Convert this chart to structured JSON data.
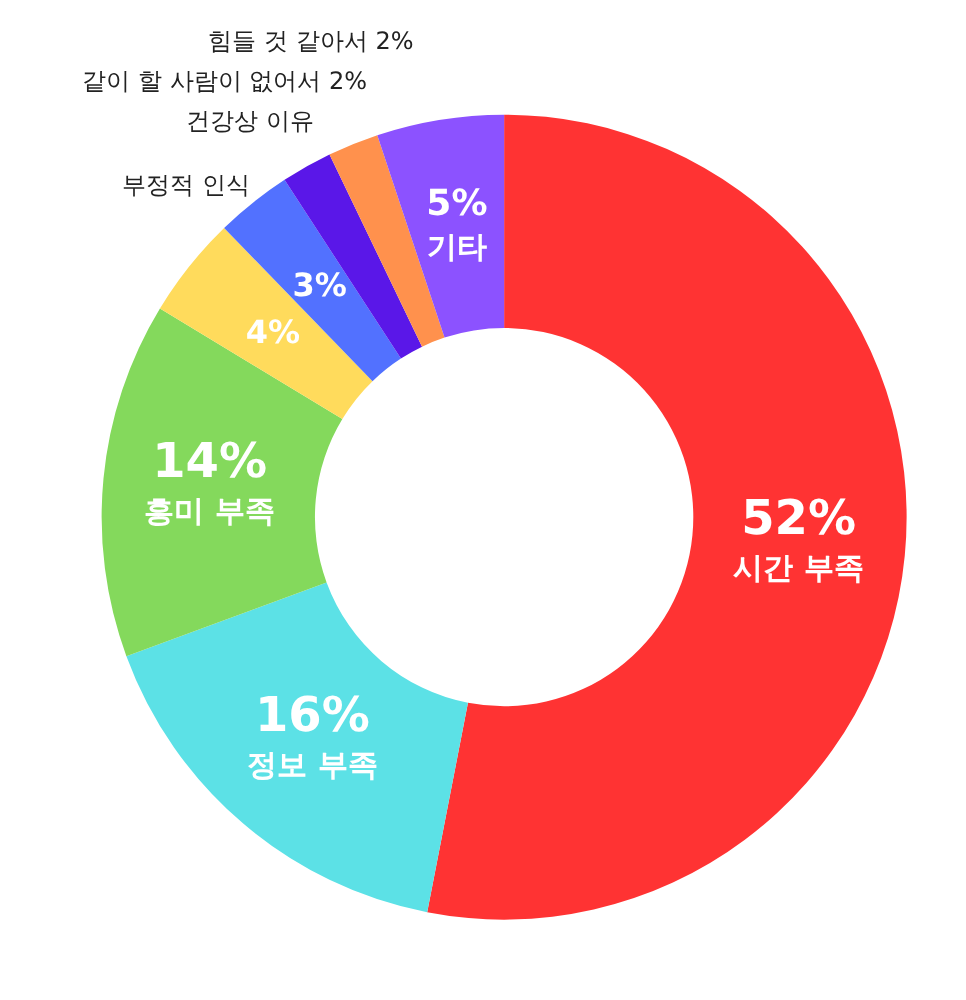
{
  "chart_data": {
    "type": "donut",
    "categories": [
      "시간 부족",
      "정보 부족",
      "흥미 부족",
      "부정적 인식",
      "건강상 이유",
      "같이 할 사람이 없어서",
      "힘들 것 같아서",
      "기타"
    ],
    "values": [
      52,
      16,
      14,
      4,
      3,
      2,
      2,
      5
    ],
    "value_labels": [
      "52%",
      "16%",
      "14%",
      "4%",
      "3%",
      "2%",
      "2%",
      "5%"
    ],
    "colors": [
      "#ff3333",
      "#5ce1e6",
      "#84d95c",
      "#ffdb5c",
      "#5271ff",
      "#5a17e8",
      "#ff914d",
      "#8c52ff"
    ]
  }
}
